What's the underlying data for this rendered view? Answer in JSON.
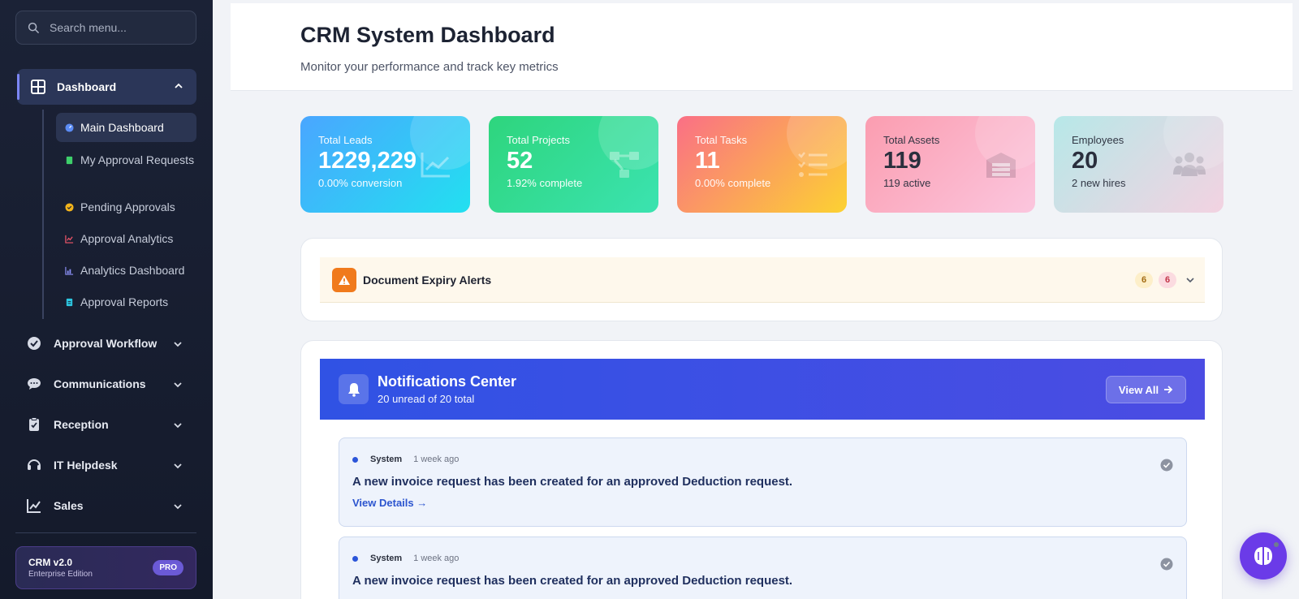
{
  "sidebar": {
    "search_placeholder": "Search menu...",
    "dashboard": {
      "label": "Dashboard",
      "items": [
        {
          "label": "Main Dashboard"
        },
        {
          "label": "My Approval Requests"
        },
        {
          "label": "Pending Approvals"
        },
        {
          "label": "Approval Analytics"
        },
        {
          "label": "Analytics Dashboard"
        },
        {
          "label": "Approval Reports"
        }
      ]
    },
    "sections": [
      {
        "label": "Approval Workflow"
      },
      {
        "label": "Communications"
      },
      {
        "label": "Reception"
      },
      {
        "label": "IT Helpdesk"
      },
      {
        "label": "Sales"
      }
    ],
    "promo": {
      "title": "CRM v2.0",
      "subtitle": "Enterprise Edition",
      "badge": "PRO"
    }
  },
  "header": {
    "title": "CRM System Dashboard",
    "subtitle": "Monitor your performance and track key metrics"
  },
  "stats": [
    {
      "label": "Total Leads",
      "value": "1229,229",
      "sub": "0.00% conversion",
      "color_from": "#4aa6ff",
      "color_to": "#22e0f0",
      "icon": "chart-line-icon"
    },
    {
      "label": "Total Projects",
      "value": "52",
      "sub": "1.92% complete",
      "color_from": "#2ed57d",
      "color_to": "#3be3b0",
      "icon": "project-diagram-icon"
    },
    {
      "label": "Total Tasks",
      "value": "11",
      "sub": "0.00% complete",
      "color_from": "#fa6f86",
      "color_to": "#fcd232",
      "icon": "tasks-icon"
    },
    {
      "label": "Total Assets",
      "value": "119",
      "sub": "119 active",
      "color_from": "#fb9db0",
      "color_to": "#fbc6de",
      "icon": "warehouse-icon"
    },
    {
      "label": "Employees",
      "value": "20",
      "sub": "2 new hires",
      "color_from": "#b7e8e8",
      "color_to": "#f3d2e1",
      "icon": "users-icon"
    }
  ],
  "alerts": {
    "title": "Document Expiry Alerts",
    "count_warning": "6",
    "count_danger": "6"
  },
  "notifications": {
    "title": "Notifications Center",
    "subtitle": "20 unread of 20 total",
    "view_all": "View All",
    "items": [
      {
        "source": "System",
        "time": "1 week ago",
        "message": "A new invoice request has been created for an approved Deduction request.",
        "link": "View Details →"
      },
      {
        "source": "System",
        "time": "1 week ago",
        "message": "A new invoice request has been created for an approved Deduction request."
      }
    ]
  }
}
